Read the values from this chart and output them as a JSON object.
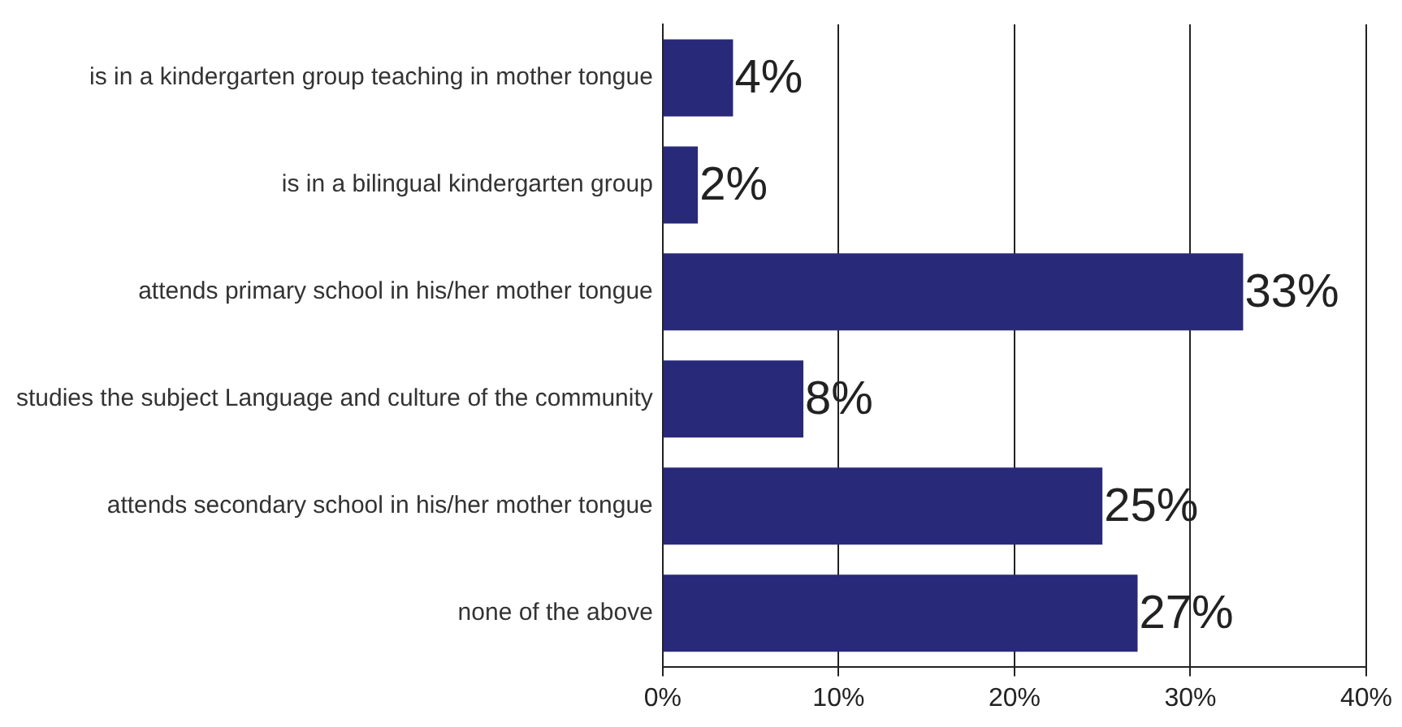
{
  "chart_data": {
    "type": "bar",
    "orientation": "horizontal",
    "categories": [
      "is in a kindergarten group teaching in mother tongue",
      "is in a bilingual kindergarten group",
      "attends primary school in his/her mother tongue",
      "studies the subject Language and culture of the community",
      "attends secondary school in his/her mother tongue",
      "none of the above"
    ],
    "values": [
      4,
      2,
      33,
      8,
      25,
      27
    ],
    "color": "#29297a",
    "xlim": [
      0,
      40
    ],
    "xticks": [
      {
        "value": 0,
        "label": "0%"
      },
      {
        "value": 10,
        "label": "10%"
      },
      {
        "value": 20,
        "label": "20%"
      },
      {
        "value": 30,
        "label": "30%"
      },
      {
        "value": 40,
        "label": "40%"
      }
    ],
    "value_labels": [
      "4%",
      "2%",
      "33%",
      "8%",
      "25%",
      "27%"
    ],
    "grid": "x",
    "legend": false
  }
}
